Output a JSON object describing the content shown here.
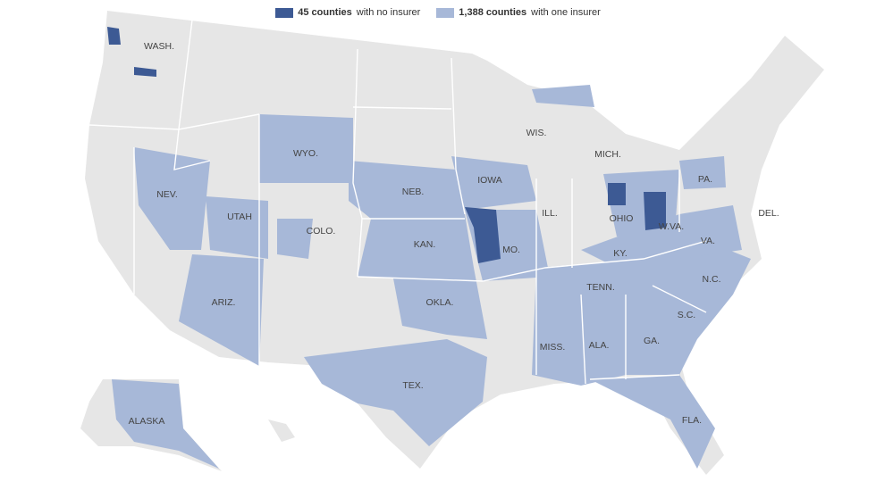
{
  "legend": [
    {
      "count": "45 counties",
      "text": "with no insurer",
      "color": "#3d5a94"
    },
    {
      "count": "1,388 counties",
      "text": "with one insurer",
      "color": "#a7b8d8"
    }
  ],
  "map": {
    "land_color": "#e6e6e6"
  },
  "labels": [
    "WASH.",
    "WYO.",
    "NEB.",
    "IOWA",
    "WIS.",
    "MICH.",
    "PA.",
    "NEV.",
    "UTAH",
    "COLO.",
    "KAN.",
    "ILL.",
    "OHIO",
    "DEL.",
    "W.VA.",
    "MO.",
    "KY.",
    "VA.",
    "ARIZ.",
    "OKLA.",
    "TENN.",
    "N.C.",
    "S.C.",
    "MISS.",
    "ALA.",
    "GA.",
    "TEX.",
    "ALASKA",
    "FLA."
  ]
}
